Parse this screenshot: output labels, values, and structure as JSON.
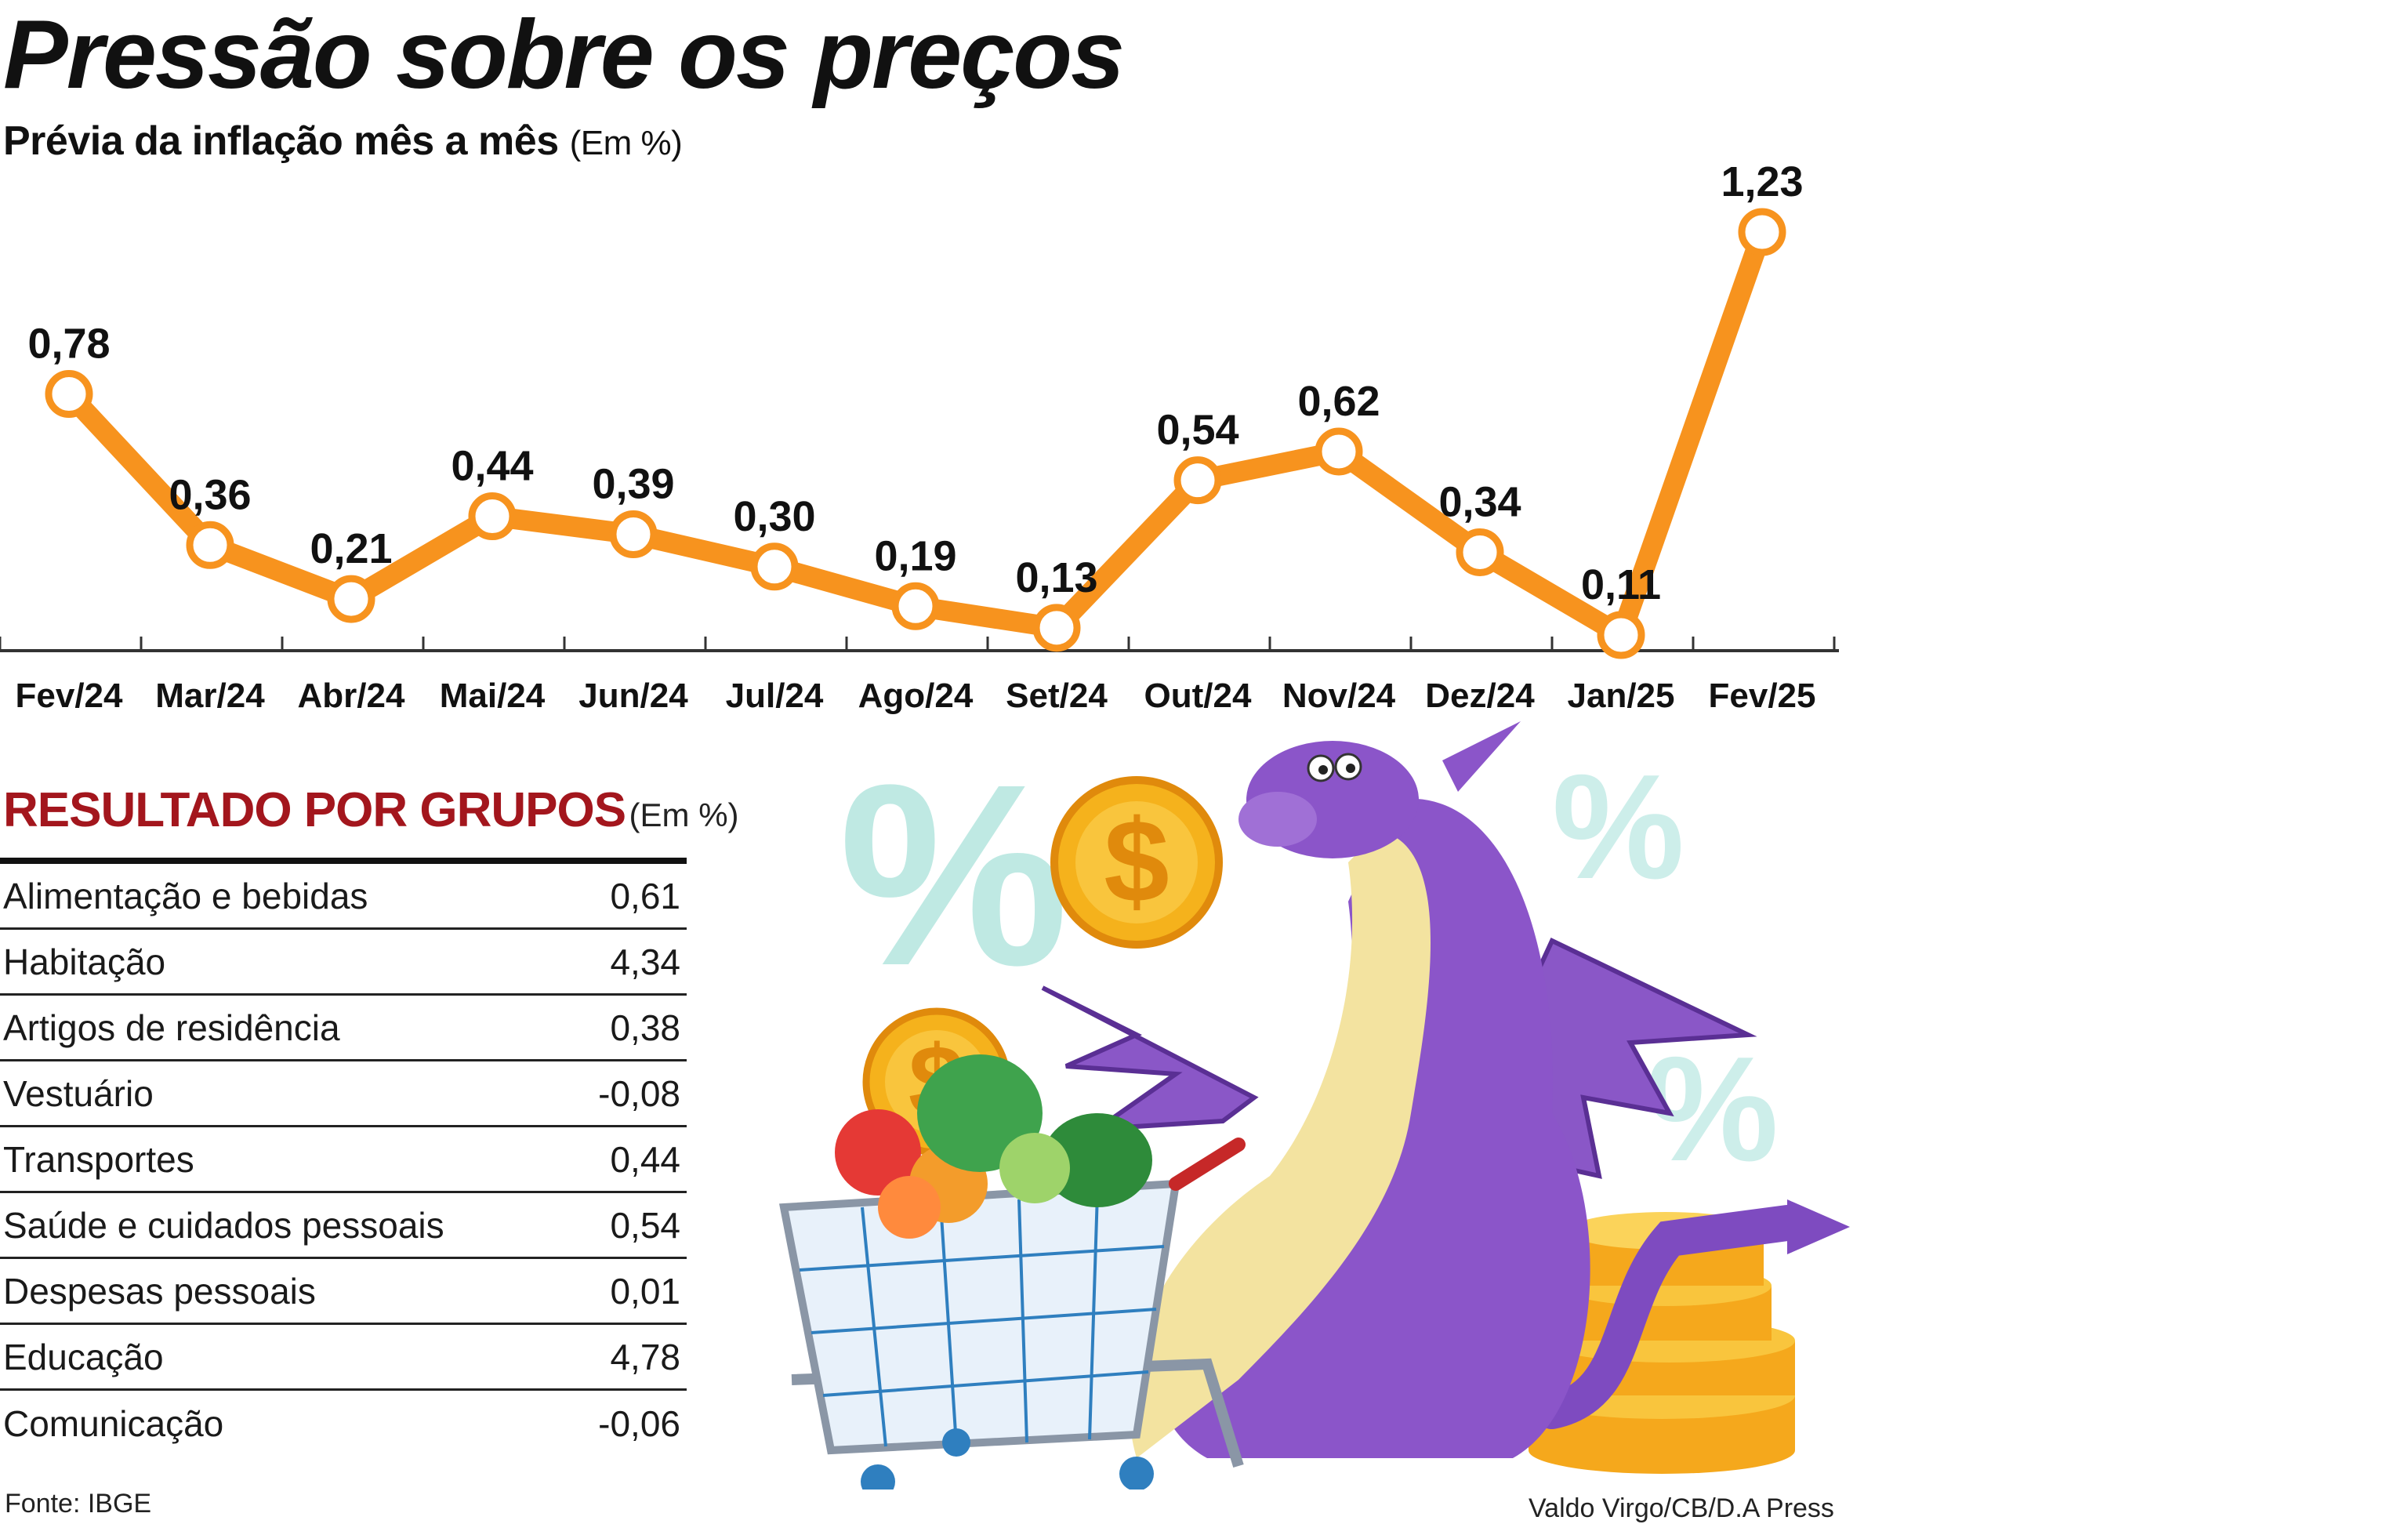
{
  "chart_data": {
    "type": "line",
    "title": "Pressão sobre os preços",
    "subtitle": "Prévia da inflação mês a mês",
    "unit": "(Em %)",
    "categories": [
      "Fev/24",
      "Mar/24",
      "Abr/24",
      "Mai/24",
      "Jun/24",
      "Jul/24",
      "Ago/24",
      "Set/24",
      "Out/24",
      "Nov/24",
      "Dez/24",
      "Jan/25",
      "Fev/25"
    ],
    "values": [
      0.78,
      0.36,
      0.21,
      0.44,
      0.39,
      0.3,
      0.19,
      0.13,
      0.54,
      0.62,
      0.34,
      0.11,
      1.23
    ],
    "value_labels": [
      "0,78",
      "0,36",
      "0,21",
      "0,44",
      "0,39",
      "0,30",
      "0,19",
      "0,13",
      "0,54",
      "0,62",
      "0,34",
      "0,11",
      "1,23"
    ],
    "ylim": [
      0,
      1.35
    ],
    "grid": false,
    "legend": "none",
    "line_color": "#f7931e"
  },
  "groups": {
    "title": "RESULTADO POR GRUPOS",
    "unit": "(Em %)",
    "title_color": "#a3161d",
    "rows": [
      {
        "label": "Alimentação e bebidas",
        "value": "0,61"
      },
      {
        "label": "Habitação",
        "value": "4,34"
      },
      {
        "label": "Artigos de residência",
        "value": "0,38"
      },
      {
        "label": "Vestuário",
        "value": "-0,08"
      },
      {
        "label": "Transportes",
        "value": "0,44"
      },
      {
        "label": "Saúde e cuidados pessoais",
        "value": "0,54"
      },
      {
        "label": "Despesas pessoais",
        "value": "0,01"
      },
      {
        "label": "Educação",
        "value": "4,78"
      },
      {
        "label": "Comunicação",
        "value": "-0,06"
      }
    ]
  },
  "footer": {
    "source": "Fonte: IBGE",
    "credit": "Valdo Virgo/CB/D.A Press"
  },
  "illustration": {
    "subject": "dragon-with-shopping-cart-icon",
    "symbol": "%",
    "coin_symbol": "$"
  }
}
